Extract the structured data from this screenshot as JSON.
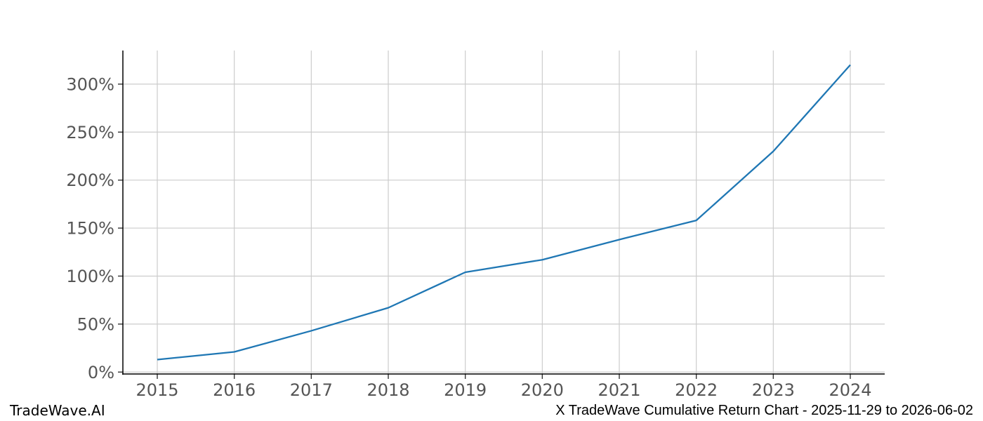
{
  "chart_data": {
    "type": "line",
    "x": [
      2015,
      2016,
      2017,
      2018,
      2019,
      2020,
      2021,
      2022,
      2023,
      2024
    ],
    "series": [
      {
        "name": "Cumulative Return",
        "values": [
          13,
          21,
          43,
          67,
          104,
          117,
          138,
          158,
          230,
          320
        ]
      }
    ],
    "title": "",
    "xlabel": "",
    "ylabel": "",
    "y_ticks": [
      0,
      50,
      100,
      150,
      200,
      250,
      300
    ],
    "y_tick_suffix": "%",
    "ylim": [
      -2,
      335
    ],
    "grid": true,
    "legend_position": "none",
    "line_color": "#1f77b4",
    "grid_color": "#cccccc",
    "spine_color": "#000000",
    "tick_color": "#333333",
    "tick_label_color": "#555555"
  },
  "footer": {
    "left": "TradeWave.AI",
    "right": "X TradeWave Cumulative Return Chart - 2025-11-29 to 2026-06-02"
  }
}
